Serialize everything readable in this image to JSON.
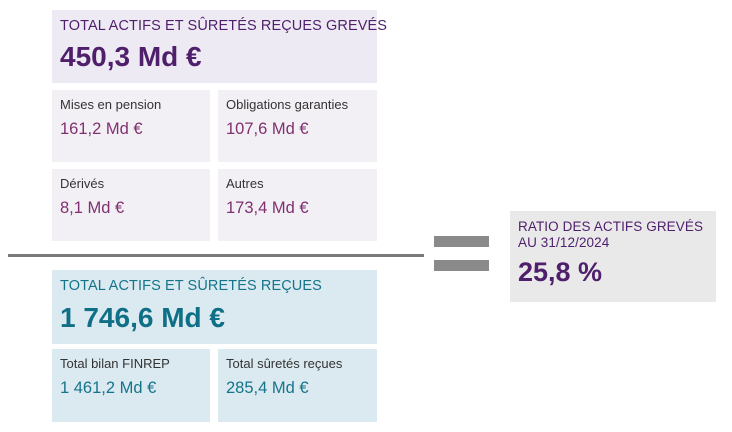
{
  "encumbered": {
    "title": "TOTAL ACTIFS ET SÛRETÉS REÇUES GREVÉS",
    "value": "450,3 Md €",
    "items": [
      {
        "label": "Mises en pension",
        "value": "161,2 Md €"
      },
      {
        "label": "Obligations garanties",
        "value": "107,6 Md €"
      },
      {
        "label": "Dérivés",
        "value": "8,1 Md €"
      },
      {
        "label": "Autres",
        "value": "173,4 Md €"
      }
    ]
  },
  "total": {
    "title": "TOTAL ACTIFS ET SÛRETÉS REÇUES",
    "value": "1 746,6 Md €",
    "items": [
      {
        "label": "Total bilan FINREP",
        "value": "1 461,2 Md €"
      },
      {
        "label": "Total sûretés reçues",
        "value": "285,4 Md €"
      }
    ]
  },
  "ratio": {
    "title_line1": "RATIO DES ACTIFS GREVÉS",
    "title_line2": "AU 31/12/2024",
    "value": "25,8 %"
  },
  "colors": {
    "purple": "#4f1f6b",
    "purple_value": "#80306f",
    "teal": "#14758a",
    "purple_bg": "#eeeaf3",
    "blue_bg": "#dbe9f0",
    "grey_bg": "#e9e9e9"
  }
}
